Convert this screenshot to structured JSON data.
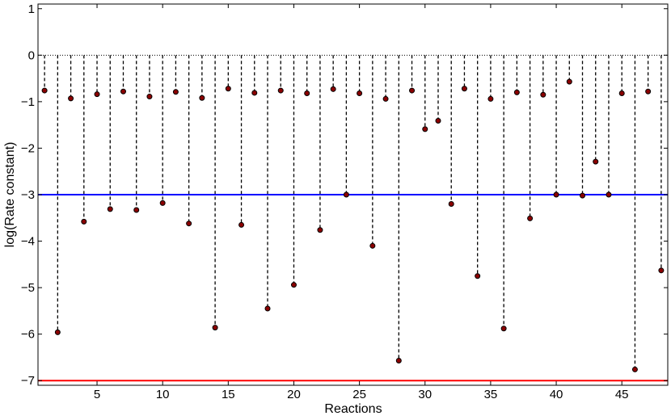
{
  "chart_data": {
    "type": "stem",
    "xlabel": "Reactions",
    "ylabel": "log(Rate constant)",
    "xlim": [
      0.5,
      48.5
    ],
    "ylim": [
      -7.1,
      1.1
    ],
    "xticks": [
      5,
      10,
      15,
      20,
      25,
      30,
      35,
      40,
      45
    ],
    "xtick_labels": [
      "5",
      "10",
      "15",
      "20",
      "25",
      "30",
      "35",
      "40",
      "45"
    ],
    "yticks": [
      1,
      0,
      -1,
      -2,
      -3,
      -4,
      -5,
      -6,
      -7
    ],
    "ytick_labels": [
      "1",
      "0",
      "−1",
      "−2",
      "−3",
      "−4",
      "−5",
      "−6",
      "−7"
    ],
    "grid": false,
    "baseline": 0,
    "x": [
      1,
      2,
      3,
      4,
      5,
      6,
      7,
      8,
      9,
      10,
      11,
      12,
      13,
      14,
      15,
      16,
      17,
      18,
      19,
      20,
      21,
      22,
      23,
      24,
      25,
      26,
      27,
      28,
      29,
      30,
      31,
      32,
      33,
      34,
      35,
      36,
      37,
      38,
      39,
      40,
      41,
      42,
      43,
      44,
      45,
      46,
      47,
      48
    ],
    "values": [
      -0.76,
      -5.96,
      -0.93,
      -3.58,
      -0.84,
      -3.31,
      -0.78,
      -3.33,
      -0.89,
      -3.18,
      -0.79,
      -3.62,
      -0.92,
      -5.86,
      -0.72,
      -3.65,
      -0.81,
      -5.45,
      -0.76,
      -4.94,
      -0.82,
      -3.76,
      -0.73,
      -3.0,
      -0.82,
      -4.1,
      -0.94,
      -6.57,
      -0.76,
      -1.59,
      -1.41,
      -3.2,
      -0.72,
      -4.75,
      -0.94,
      -5.88,
      -0.8,
      -3.51,
      -0.85,
      -3.0,
      -0.57,
      -3.02,
      -2.29,
      -3.0,
      -0.82,
      -6.76,
      -0.78,
      -4.63
    ],
    "reference_lines": [
      {
        "y": -3,
        "color": "#0000ff"
      },
      {
        "y": -7,
        "color": "#ff0000"
      }
    ],
    "colors": {
      "stem": "#000000",
      "marker_fill": "#8b0000",
      "marker_edge": "#000000",
      "axes": "#000000"
    }
  }
}
